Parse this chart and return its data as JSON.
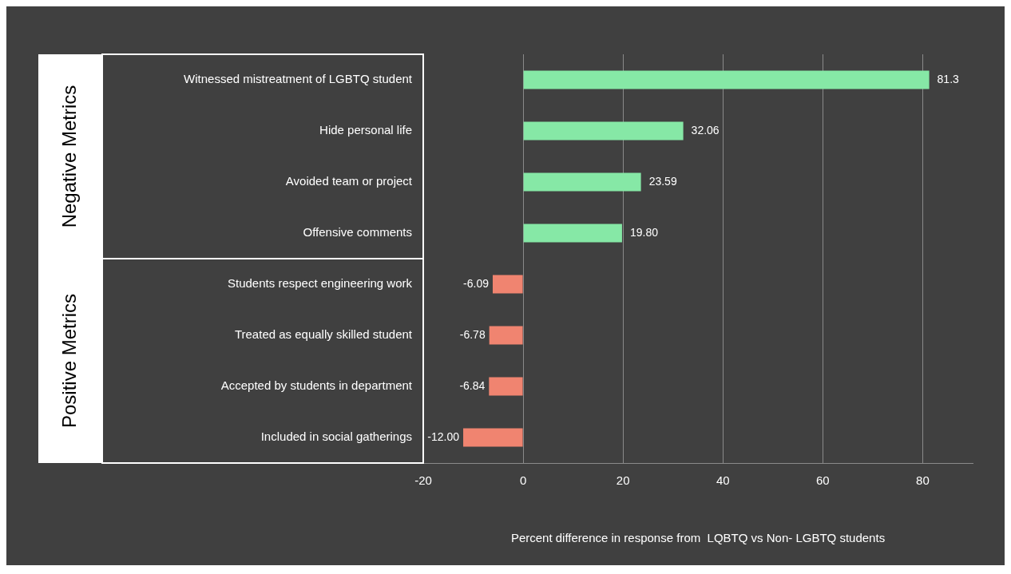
{
  "chart_data": {
    "type": "bar",
    "orientation": "horizontal",
    "xlabel": "Percent difference in response from  LQBTQ vs Non- LGBTQ students",
    "categories": [
      "Witnessed mistreatment of LGBTQ student",
      "Hide personal life",
      "Avoided team or project",
      "Offensive comments",
      "Students respect engineering work",
      "Treated as equally skilled student",
      "Accepted by students in department",
      "Included in social gatherings"
    ],
    "values": [
      81.3,
      32.06,
      23.59,
      19.8,
      -6.09,
      -6.78,
      -6.84,
      -12.0
    ],
    "value_labels": [
      "81.3",
      "32.06",
      "23.59",
      "19.80",
      "-6.09",
      "-6.78",
      "-6.84",
      "-12.00"
    ],
    "colors": [
      "#86e8a6",
      "#86e8a6",
      "#86e8a6",
      "#86e8a6",
      "#f08470",
      "#f08470",
      "#f08470",
      "#f08470"
    ],
    "xlim": [
      -20,
      90
    ],
    "xticks": [
      -20,
      0,
      20,
      40,
      60,
      80
    ],
    "grid": "x",
    "legend": false,
    "annotations": [
      "Negative Metrics",
      "Positive Metrics"
    ]
  }
}
